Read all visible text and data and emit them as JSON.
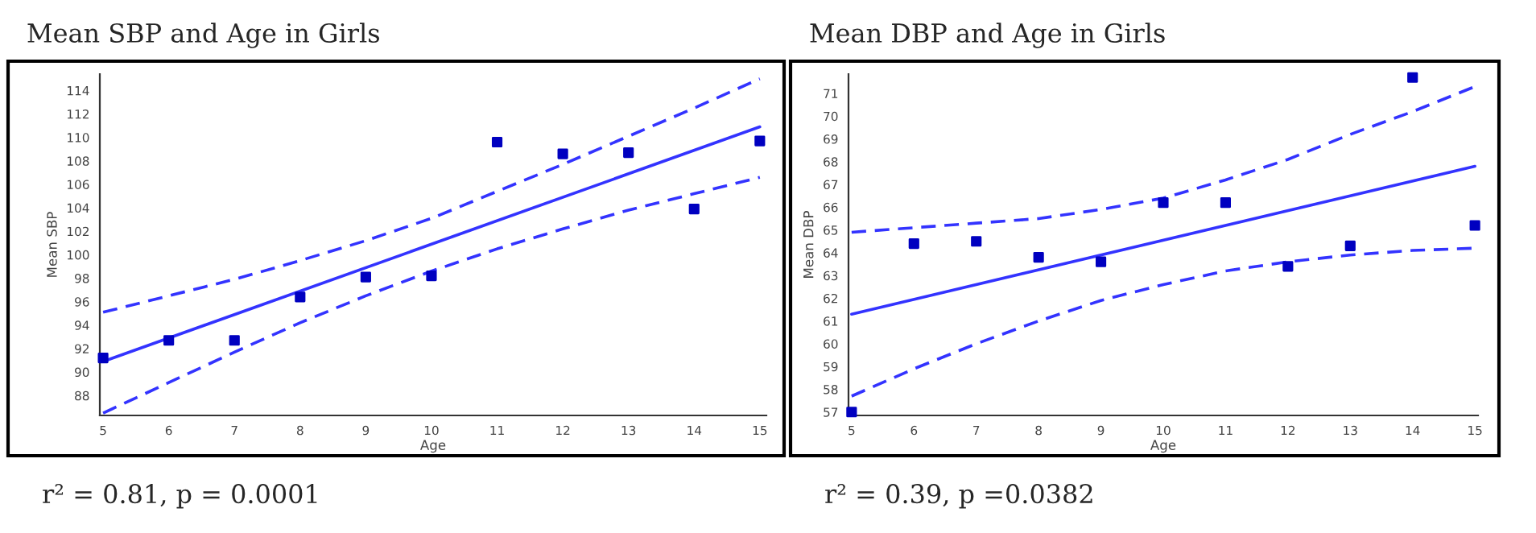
{
  "chart_data": [
    {
      "type": "scatter",
      "title": "Mean SBP and Age in Girls",
      "xlabel": "Age",
      "ylabel": "Mean SBP",
      "annotations": [
        "r² = 0.81, p = 0.0001"
      ],
      "xlim": [
        4.95,
        15.1
      ],
      "xticks": [
        5,
        6,
        7,
        8,
        9,
        10,
        11,
        12,
        13,
        14,
        15
      ],
      "ylim": [
        86.3,
        115.4
      ],
      "yticks": [
        88,
        90,
        92,
        94,
        96,
        98,
        100,
        102,
        104,
        106,
        108,
        110,
        112,
        114
      ],
      "grid": false,
      "legend": false,
      "series": [
        {
          "color": "#0000c0",
          "marker": "square",
          "x": [
            5,
            6,
            7,
            8,
            9,
            10,
            11,
            12,
            13,
            14,
            15
          ],
          "values": [
            91.2,
            92.7,
            92.7,
            96.4,
            98.1,
            98.2,
            109.6,
            108.6,
            108.7,
            103.9,
            109.7
          ]
        },
        {
          "type": "line",
          "color": "#3333ff",
          "line_style": "solid",
          "x": [
            5,
            15
          ],
          "values": [
            90.9,
            110.9
          ]
        },
        {
          "type": "line",
          "color": "#3333ff",
          "line_style": "dashed",
          "x": [
            5,
            6,
            7,
            8,
            9,
            10,
            11,
            12,
            13,
            14,
            15
          ],
          "values": [
            95.1,
            96.5,
            97.9,
            99.5,
            101.2,
            103.1,
            105.4,
            107.7,
            110.1,
            112.5,
            115.0
          ]
        },
        {
          "type": "line",
          "color": "#3333ff",
          "line_style": "dashed",
          "x": [
            5,
            6,
            7,
            8,
            9,
            10,
            11,
            12,
            13,
            14,
            15
          ],
          "values": [
            86.5,
            89.1,
            91.7,
            94.2,
            96.5,
            98.6,
            100.5,
            102.2,
            103.8,
            105.2,
            106.6
          ]
        }
      ]
    },
    {
      "type": "scatter",
      "title": "Mean DBP and Age in Girls",
      "xlabel": "Age",
      "ylabel": "Mean DBP",
      "annotations": [
        "r² = 0.39, p =0.0382"
      ],
      "xlim": [
        4.95,
        15.05
      ],
      "xticks": [
        5,
        6,
        7,
        8,
        9,
        10,
        11,
        12,
        13,
        14,
        15
      ],
      "ylim": [
        56.85,
        71.85
      ],
      "yticks": [
        57,
        58,
        59,
        60,
        61,
        62,
        63,
        64,
        65,
        66,
        67,
        68,
        69,
        70,
        71
      ],
      "grid": false,
      "legend": false,
      "series": [
        {
          "color": "#0000c0",
          "marker": "square",
          "x": [
            5,
            6,
            7,
            8,
            9,
            10,
            11,
            12,
            13,
            14,
            15
          ],
          "values": [
            57.0,
            64.4,
            64.5,
            63.8,
            63.6,
            66.2,
            66.2,
            63.4,
            64.3,
            71.7,
            65.2
          ]
        },
        {
          "type": "line",
          "color": "#3333ff",
          "line_style": "solid",
          "x": [
            5,
            15
          ],
          "values": [
            61.3,
            67.8
          ]
        },
        {
          "type": "line",
          "color": "#3333ff",
          "line_style": "dashed",
          "x": [
            5,
            6,
            7,
            8,
            9,
            10,
            11,
            12,
            13,
            14,
            15
          ],
          "values": [
            64.9,
            65.1,
            65.3,
            65.5,
            65.9,
            66.4,
            67.2,
            68.1,
            69.2,
            70.2,
            71.3
          ]
        },
        {
          "type": "line",
          "color": "#3333ff",
          "line_style": "dashed",
          "x": [
            5,
            6,
            7,
            8,
            9,
            10,
            11,
            12,
            13,
            14,
            15
          ],
          "values": [
            57.7,
            58.9,
            60.0,
            61.0,
            61.9,
            62.6,
            63.2,
            63.6,
            63.9,
            64.1,
            64.2
          ]
        }
      ]
    }
  ]
}
